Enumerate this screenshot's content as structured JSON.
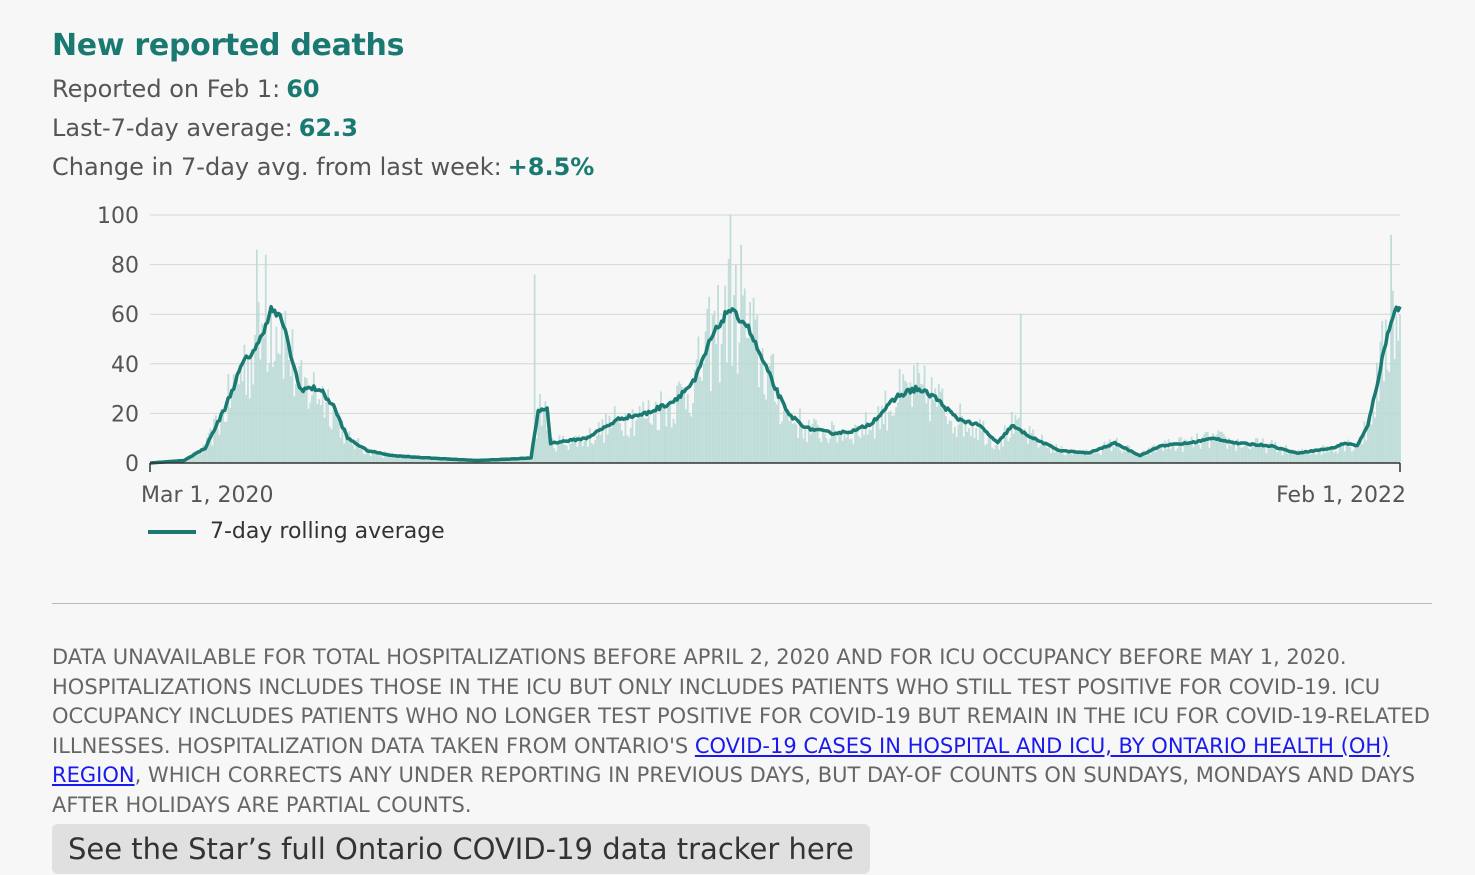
{
  "title": "New reported deaths",
  "stats": [
    {
      "label": "Reported on Feb 1:",
      "value": "60"
    },
    {
      "label": "Last-7-day average:",
      "value": "62.3"
    },
    {
      "label": "Change in 7-day avg. from last week:",
      "value": "+8.5%"
    }
  ],
  "note": {
    "text_before": "Data unavailable for total hospitalizations before April 2, 2020 and for ICU occupancy before May 1, 2020. Hospitalizations includes those in the ICU but only includes patients who still test positive for COVID-19. ICU occupancy includes patients who no longer test positive for COVID-19 but remain in the ICU for COVID-19-related illnesses. Hospitalization data taken from Ontario's ",
    "link_text": "COVID-19 cases in hospital and ICU, by Ontario Health (OH) region",
    "text_after": ", which corrects any under reporting in previous days, but day-of counts on Sundays, Mondays and days after holidays are partial counts."
  },
  "cta_label": "See the Star’s full Ontario COVID-19 data tracker here",
  "colors": {
    "accent": "#1a7a72",
    "bars": "#b9d9d5",
    "link": "#1a1aee"
  },
  "chart_data": {
    "type": "bar",
    "title": "",
    "xlabel": "",
    "ylabel": "",
    "x_range": [
      "2020-03-01",
      "2022-02-01"
    ],
    "x_tick_labels": [
      "Mar 1, 2020",
      "Feb 1, 2022"
    ],
    "ylim": [
      0,
      100
    ],
    "y_ticks": [
      0,
      20,
      40,
      60,
      80,
      100
    ],
    "grid": true,
    "legend": {
      "position": "bottom-left",
      "entries": [
        "7-day rolling average"
      ]
    },
    "rolling_average_keypoints": [
      [
        "2020-03-01",
        0
      ],
      [
        "2020-03-20",
        1
      ],
      [
        "2020-04-01",
        6
      ],
      [
        "2020-04-12",
        22
      ],
      [
        "2020-04-22",
        40
      ],
      [
        "2020-05-01",
        48
      ],
      [
        "2020-05-08",
        62
      ],
      [
        "2020-05-14",
        58
      ],
      [
        "2020-05-24",
        30
      ],
      [
        "2020-06-04",
        30
      ],
      [
        "2020-06-12",
        23
      ],
      [
        "2020-06-20",
        10
      ],
      [
        "2020-07-01",
        5
      ],
      [
        "2020-07-15",
        3
      ],
      [
        "2020-08-05",
        2
      ],
      [
        "2020-09-01",
        1
      ],
      [
        "2020-10-01",
        2
      ],
      [
        "2020-10-05",
        21
      ],
      [
        "2020-10-10",
        22
      ],
      [
        "2020-10-12",
        8
      ],
      [
        "2020-11-01",
        10
      ],
      [
        "2020-11-20",
        18
      ],
      [
        "2020-12-05",
        20
      ],
      [
        "2020-12-20",
        25
      ],
      [
        "2021-01-01",
        33
      ],
      [
        "2021-01-10",
        50
      ],
      [
        "2021-01-20",
        62
      ],
      [
        "2021-01-30",
        56
      ],
      [
        "2021-02-10",
        38
      ],
      [
        "2021-02-22",
        20
      ],
      [
        "2021-03-05",
        14
      ],
      [
        "2021-03-20",
        12
      ],
      [
        "2021-04-01",
        13
      ],
      [
        "2021-04-10",
        16
      ],
      [
        "2021-04-25",
        27
      ],
      [
        "2021-05-05",
        30
      ],
      [
        "2021-05-15",
        27
      ],
      [
        "2021-05-28",
        18
      ],
      [
        "2021-06-10",
        15
      ],
      [
        "2021-06-20",
        8
      ],
      [
        "2021-06-28",
        15
      ],
      [
        "2021-07-10",
        10
      ],
      [
        "2021-07-25",
        5
      ],
      [
        "2021-08-10",
        4
      ],
      [
        "2021-08-25",
        8
      ],
      [
        "2021-09-08",
        3
      ],
      [
        "2021-09-20",
        7
      ],
      [
        "2021-10-05",
        8
      ],
      [
        "2021-10-20",
        10
      ],
      [
        "2021-11-01",
        8
      ],
      [
        "2021-11-20",
        7
      ],
      [
        "2021-12-05",
        4
      ],
      [
        "2021-12-15",
        5
      ],
      [
        "2021-12-25",
        6
      ],
      [
        "2022-01-01",
        8
      ],
      [
        "2022-01-08",
        7
      ],
      [
        "2022-01-14",
        15
      ],
      [
        "2022-01-20",
        35
      ],
      [
        "2022-01-26",
        55
      ],
      [
        "2022-01-29",
        62
      ],
      [
        "2022-02-01",
        62.3
      ]
    ],
    "daily_bars_note_values": [
      [
        "2020-04-30",
        86
      ],
      [
        "2020-05-05",
        84
      ],
      [
        "2020-10-03",
        76
      ],
      [
        "2021-01-21",
        100
      ],
      [
        "2021-01-27",
        88
      ],
      [
        "2021-07-03",
        60
      ],
      [
        "2022-01-27",
        92
      ],
      [
        "2022-02-01",
        60
      ]
    ]
  }
}
